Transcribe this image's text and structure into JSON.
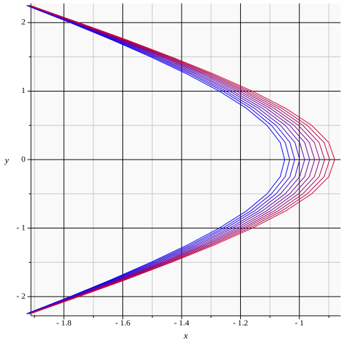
{
  "chart_data": {
    "type": "line",
    "x_label": "x",
    "y_label": "y",
    "xlim": [
      -1.912,
      -0.86
    ],
    "ylim": [
      -2.28,
      2.28
    ],
    "xticks": [
      {
        "value": -1.8,
        "label": "- 1.8"
      },
      {
        "value": -1.6,
        "label": "- 1.6"
      },
      {
        "value": -1.4,
        "label": "- 1.4"
      },
      {
        "value": -1.2,
        "label": "- 1.2"
      },
      {
        "value": -1,
        "label": "- 1"
      }
    ],
    "yticks": [
      {
        "value": -2,
        "label": "- 2"
      },
      {
        "value": -1,
        "label": "- 1"
      },
      0,
      1,
      2
    ],
    "x_minor_grid": [
      -1.9,
      -1.7,
      -1.5,
      -1.3,
      -1.1,
      -0.9
    ],
    "y_minor_grid": [
      -1.5,
      -0.5,
      0.5,
      1.5
    ],
    "grid": true,
    "y": [
      -2.25,
      -2,
      -1.75,
      -1.5,
      -1.25,
      -1,
      -0.75,
      -0.5,
      -0.25,
      0,
      0.25,
      0.5,
      0.75,
      1,
      1.25,
      1.5,
      1.75,
      2,
      2.25
    ],
    "series": [
      {
        "color": "#0000ff",
        "x": [
          -1.927,
          -1.779,
          -1.638,
          -1.505,
          -1.382,
          -1.272,
          -1.18,
          -1.11,
          -1.065,
          -1.05,
          -1.065,
          -1.11,
          -1.18,
          -1.272,
          -1.382,
          -1.505,
          -1.638,
          -1.779,
          -1.927
        ]
      },
      {
        "color": "#1400eb",
        "x": [
          -1.925,
          -1.776,
          -1.633,
          -1.498,
          -1.372,
          -1.26,
          -1.166,
          -1.095,
          -1.048,
          -1.033,
          -1.048,
          -1.095,
          -1.166,
          -1.26,
          -1.372,
          -1.498,
          -1.633,
          -1.776,
          -1.925
        ]
      },
      {
        "color": "#2900d6",
        "x": [
          -1.924,
          -1.772,
          -1.627,
          -1.49,
          -1.363,
          -1.249,
          -1.153,
          -1.079,
          -1.032,
          -1.016,
          -1.032,
          -1.079,
          -1.153,
          -1.249,
          -1.363,
          -1.49,
          -1.627,
          -1.772,
          -1.924
        ]
      },
      {
        "color": "#3d00c2",
        "x": [
          -1.922,
          -1.769,
          -1.622,
          -1.483,
          -1.353,
          -1.237,
          -1.139,
          -1.064,
          -1.015,
          -0.999,
          -1.015,
          -1.064,
          -1.139,
          -1.237,
          -1.353,
          -1.483,
          -1.622,
          -1.769,
          -1.922
        ]
      },
      {
        "color": "#5200ad",
        "x": [
          -1.921,
          -1.765,
          -1.616,
          -1.475,
          -1.344,
          -1.226,
          -1.126,
          -1.048,
          -0.999,
          -0.982,
          -0.999,
          -1.048,
          -1.126,
          -1.226,
          -1.344,
          -1.475,
          -1.616,
          -1.765,
          -1.921
        ]
      },
      {
        "color": "#660099",
        "x": [
          -1.919,
          -1.762,
          -1.611,
          -1.468,
          -1.334,
          -1.214,
          -1.112,
          -1.033,
          -0.982,
          -0.965,
          -0.982,
          -1.033,
          -1.112,
          -1.214,
          -1.334,
          -1.468,
          -1.611,
          -1.762,
          -1.919
        ]
      },
      {
        "color": "#7a0085",
        "x": [
          -1.918,
          -1.759,
          -1.606,
          -1.461,
          -1.325,
          -1.203,
          -1.099,
          -1.018,
          -0.966,
          -0.948,
          -0.966,
          -1.018,
          -1.099,
          -1.203,
          -1.325,
          -1.461,
          -1.606,
          -1.759,
          -1.918
        ]
      },
      {
        "color": "#8f0070",
        "x": [
          -1.917,
          -1.757,
          -1.602,
          -1.455,
          -1.317,
          -1.192,
          -1.086,
          -1.003,
          -0.949,
          -0.931,
          -0.949,
          -1.003,
          -1.086,
          -1.192,
          -1.317,
          -1.455,
          -1.602,
          -1.757,
          -1.917
        ]
      },
      {
        "color": "#a3005c",
        "x": [
          -1.916,
          -1.754,
          -1.597,
          -1.448,
          -1.308,
          -1.182,
          -1.073,
          -0.988,
          -0.933,
          -0.914,
          -0.933,
          -0.988,
          -1.073,
          -1.182,
          -1.308,
          -1.448,
          -1.597,
          -1.754,
          -1.916
        ]
      },
      {
        "color": "#b80047",
        "x": [
          -1.915,
          -1.752,
          -1.593,
          -1.442,
          -1.3,
          -1.171,
          -1.06,
          -0.973,
          -0.916,
          -0.897,
          -0.916,
          -0.973,
          -1.06,
          -1.171,
          -1.3,
          -1.442,
          -1.593,
          -1.752,
          -1.915
        ]
      },
      {
        "color": "#cc0033",
        "x": [
          -1.914,
          -1.749,
          -1.588,
          -1.435,
          -1.291,
          -1.16,
          -1.047,
          -0.958,
          -0.9,
          -0.88,
          -0.9,
          -0.958,
          -1.047,
          -1.16,
          -1.291,
          -1.435,
          -1.588,
          -1.749,
          -1.914
        ]
      }
    ]
  }
}
